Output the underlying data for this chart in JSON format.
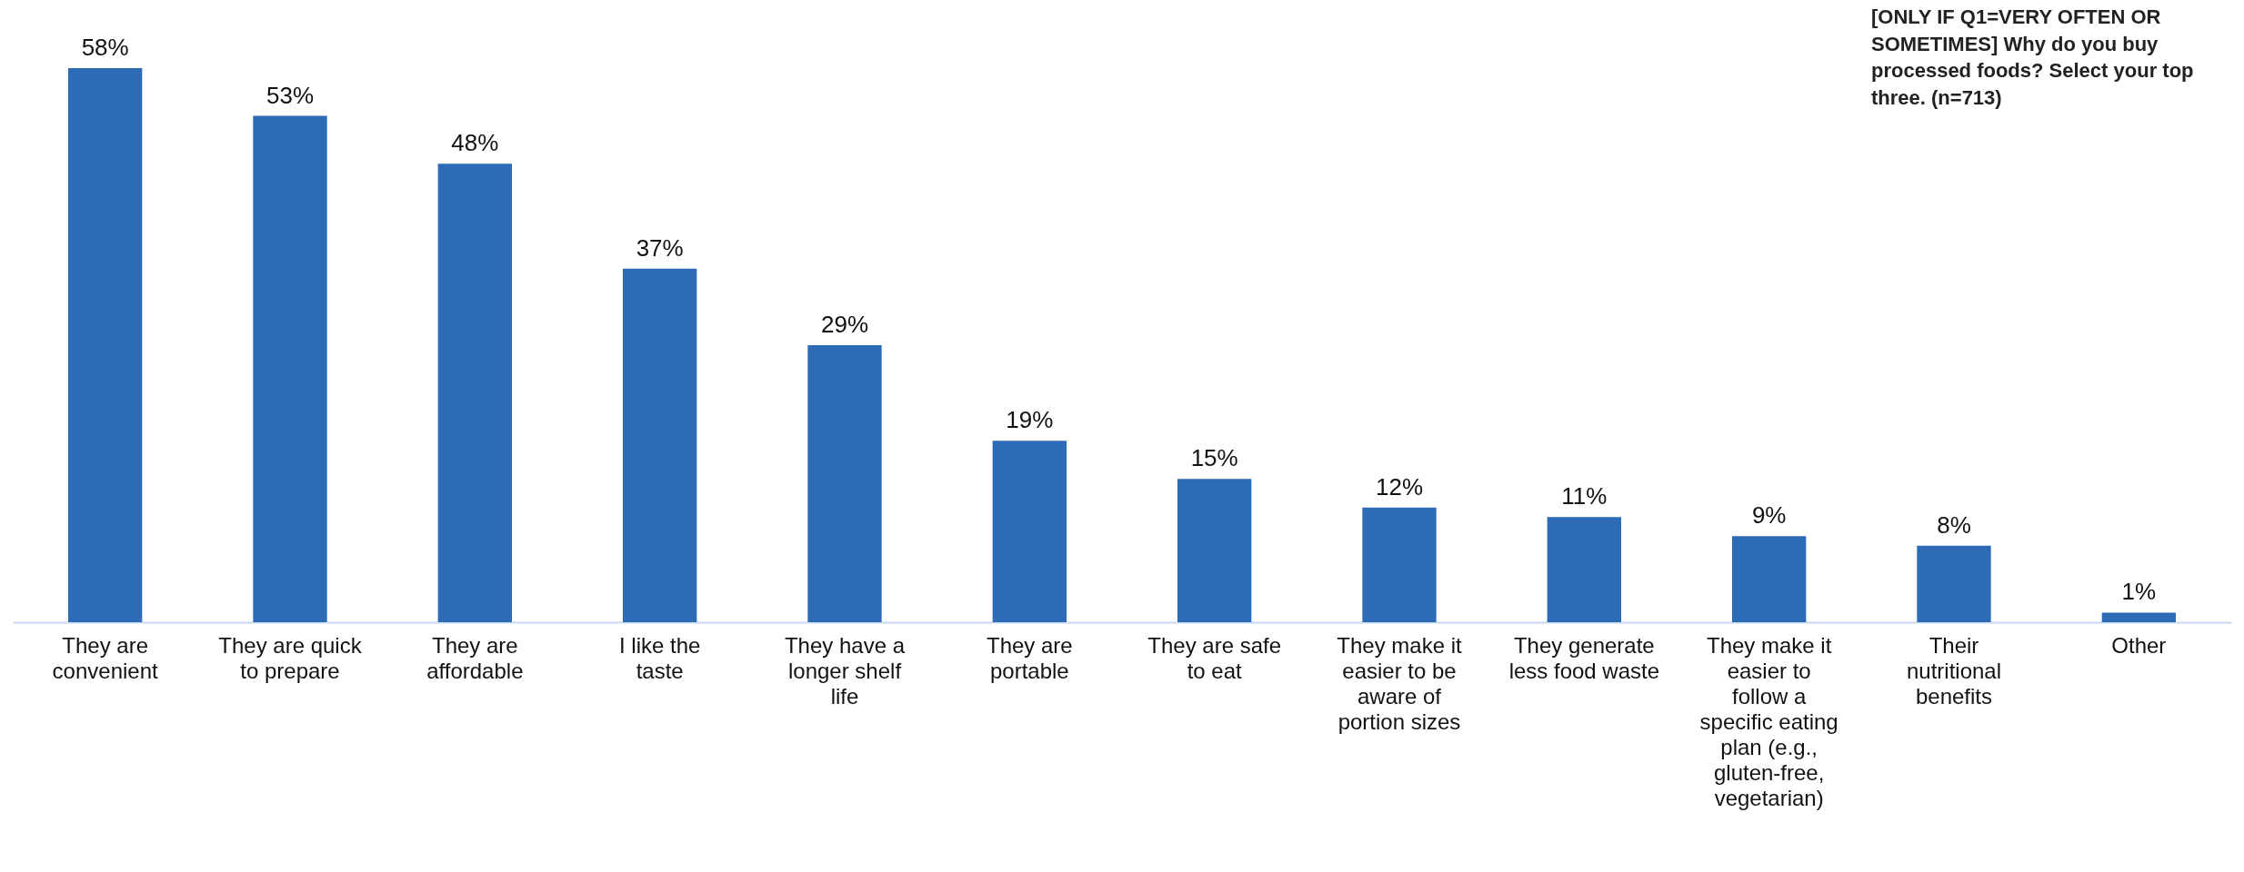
{
  "chart_data": {
    "type": "bar",
    "categories": [
      "They are convenient",
      "They are quick to prepare",
      "They are affordable",
      "I like the taste",
      "They have a longer shelf life",
      "They are portable",
      "They are safe to eat",
      "They make it easier to be aware of portion sizes",
      "They generate less food waste",
      "They make it easier to follow a specific eating plan (e.g., gluten-free, vegetarian)",
      "Their nutritional benefits",
      "Other"
    ],
    "values": [
      58,
      53,
      48,
      37,
      29,
      19,
      15,
      12,
      11,
      9,
      8,
      1
    ],
    "value_labels": [
      "58%",
      "53%",
      "48%",
      "37%",
      "29%",
      "19%",
      "15%",
      "12%",
      "11%",
      "9%",
      "8%",
      "1%"
    ],
    "color": "#2e6bb7",
    "annotations": [
      "[ONLY IF Q1=VERY OFTEN OR SOMETIMES] Why do you buy processed foods? Select your top three. (n=713)"
    ]
  }
}
